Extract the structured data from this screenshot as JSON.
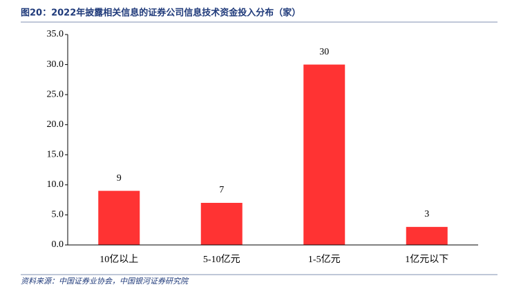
{
  "chart_data": {
    "type": "bar",
    "title": "图20：2022年披露相关信息的证券公司信息技术资金投入分布（家）",
    "source": "资料来源：中国证券业协会，中国银河证券研究院",
    "categories": [
      "10亿以上",
      "5-10亿元",
      "1-5亿元",
      "1亿元以下"
    ],
    "values": [
      9,
      7,
      30,
      3
    ],
    "color": "#ff3333",
    "ylim": [
      0,
      35
    ],
    "yticks": [
      {
        "value": 0,
        "label": "0.0"
      },
      {
        "value": 5,
        "label": "5.0"
      },
      {
        "value": 10,
        "label": "10.0"
      },
      {
        "value": 15,
        "label": "15.0"
      },
      {
        "value": 20,
        "label": "20.0"
      },
      {
        "value": 25,
        "label": "25.0"
      },
      {
        "value": 30,
        "label": "30.0"
      },
      {
        "value": 35,
        "label": "35.0"
      }
    ],
    "grid": false
  }
}
